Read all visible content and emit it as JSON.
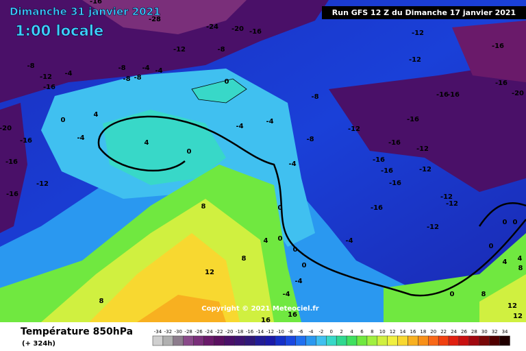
{
  "header": {
    "title": "Dimanche 31 janvier 2021",
    "time": "1:00 locale",
    "run": "Run GFS 12 Z du Dimanche 17 janvier 2021"
  },
  "copyright": "Copyright © 2021 Meteociel.fr",
  "footer": {
    "title": "Température 850hPa",
    "offset": "(+ 324h)"
  },
  "scale": {
    "values": [
      -34,
      -32,
      -30,
      -28,
      -26,
      -24,
      -22,
      -20,
      -18,
      -16,
      -14,
      -12,
      -10,
      -8,
      -6,
      -4,
      -2,
      0,
      2,
      4,
      6,
      8,
      10,
      12,
      14,
      16,
      18,
      20,
      22,
      24,
      26,
      28,
      30,
      32,
      34
    ],
    "colors": [
      "#d0d0d0",
      "#b0b0b0",
      "#8c7c8c",
      "#8a4a8a",
      "#7a2f7a",
      "#6a1a6a",
      "#5a1060",
      "#4a1068",
      "#3e1470",
      "#301878",
      "#221c96",
      "#1a1aa8",
      "#1530c8",
      "#1a48e0",
      "#2070f0",
      "#2a98f0",
      "#40c0f0",
      "#38d8c8",
      "#30d890",
      "#40e060",
      "#70e840",
      "#a0f040",
      "#d0f040",
      "#f0f040",
      "#f8d830",
      "#f8b020",
      "#f89018",
      "#f86818",
      "#f04010",
      "#e02010",
      "#c81010",
      "#a00810",
      "#780808",
      "#500000",
      "#200000"
    ]
  },
  "map": {
    "contour_labels": [
      "-16",
      "-28",
      "-24",
      "-20",
      "-16",
      "-12",
      "-16",
      "-12",
      "-8",
      "-12",
      "-8",
      "-8",
      "-4",
      "-4",
      "-12",
      "-4",
      "-8",
      "-8",
      "0",
      "-16",
      "-16",
      "-16",
      "-16",
      "-20",
      "-8",
      "0",
      "4",
      "-4",
      "-4",
      "-12",
      "-16",
      "-20",
      "-4",
      "-8",
      "4",
      "-16",
      "-16",
      "-12",
      "0",
      "-16",
      "-4",
      "-16",
      "-16",
      "-12",
      "-12",
      "-16",
      "-12",
      "-12",
      "-16",
      "-16",
      "8",
      "0",
      "0",
      "0",
      "-12",
      "4",
      "0",
      "-4",
      "0",
      "0",
      "8",
      "4",
      "0",
      "4",
      "8",
      "12",
      "-4",
      "-4",
      "0",
      "8",
      "8",
      "12",
      "16",
      "16",
      "12"
    ]
  }
}
